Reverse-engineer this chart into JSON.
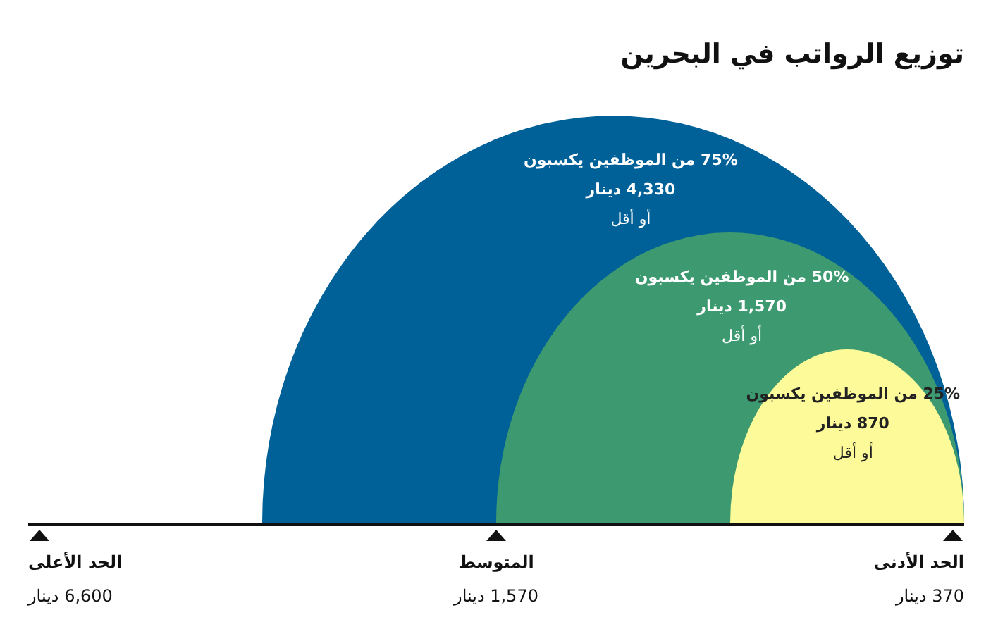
{
  "chart_data": {
    "type": "other",
    "title": "توزيع الرواتب في البحرين",
    "categories": [
      "25% من الموظفين يكسبون",
      "50% من الموظفين يكسبون",
      "75% من الموظفين يكسبون"
    ],
    "values": [
      870,
      1570,
      4330
    ],
    "value_labels": [
      "870 دينار",
      "1,570 دينار",
      "4,330 دينار"
    ],
    "colors": [
      "#fdfa99",
      "#3d9970",
      "#006199"
    ],
    "annotations": [
      "أو أقل",
      "أو أقل",
      "أو أقل",
      "الحد الأدنى",
      "المتوسط",
      "الحد الأعلى",
      "370 دينار",
      "1,570 دينار",
      "6,600 دينار"
    ]
  }
}
